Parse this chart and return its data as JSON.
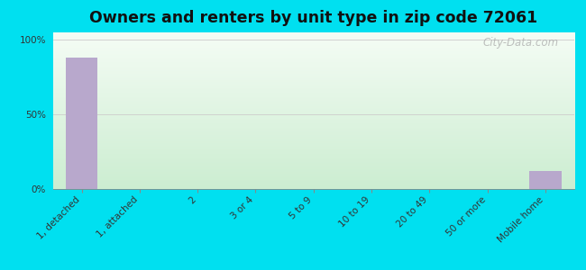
{
  "title": "Owners and renters by unit type in zip code 72061",
  "categories": [
    "1, detached",
    "1, attached",
    "2",
    "3 or 4",
    "5 to 9",
    "10 to 19",
    "20 to 49",
    "50 or more",
    "Mobile home"
  ],
  "values": [
    88,
    0,
    0,
    0,
    0,
    0,
    0,
    0,
    12
  ],
  "bar_color": "#b8a8cc",
  "bg_outer": "#00e0f0",
  "grid_color": "#cccccc",
  "yticks": [
    0,
    50,
    100
  ],
  "ylim": [
    0,
    105
  ],
  "title_fontsize": 12.5,
  "tick_fontsize": 7.5,
  "watermark": "City-Data.com",
  "grad_top": "#f5faf0",
  "grad_bottom": "#d0eedd"
}
